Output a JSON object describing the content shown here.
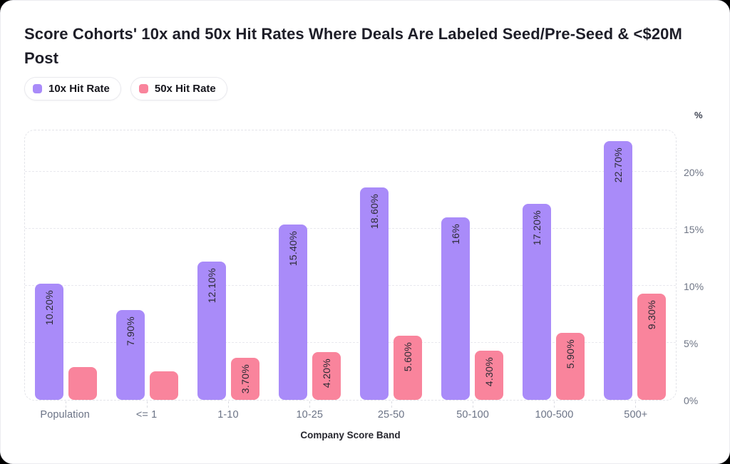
{
  "header": {
    "title_lines": [
      "Score Cohorts' 10x and 50x Hit Rates Where Deals Are Labeled Seed/Pre-Seed & <$20M",
      "Post"
    ]
  },
  "chart_data": {
    "type": "bar",
    "title": "Score Cohorts' 10x and 50x Hit Rates Where Deals Are Labeled Seed/Pre-Seed & <$20M Post",
    "categories": [
      "Population",
      "<= 1",
      "1-10",
      "10-25",
      "25-50",
      "50-100",
      "100-500",
      "500+"
    ],
    "series": [
      {
        "name": "10x Hit Rate",
        "color": "#a98bf9",
        "values": [
          10.2,
          7.9,
          12.1,
          15.4,
          18.6,
          16,
          17.2,
          22.7
        ],
        "bar_labels": [
          "10.20%",
          "7.90%",
          "12.10%",
          "15.40%",
          "18.60%",
          "16%",
          "17.20%",
          "22.70%"
        ]
      },
      {
        "name": "50x Hit Rate",
        "color": "#f9849c",
        "values": [
          2.9,
          2.5,
          3.7,
          4.2,
          5.6,
          4.3,
          5.9,
          9.3
        ],
        "bar_labels": [
          "",
          "",
          "3.70%",
          "4.20%",
          "5.60%",
          "4.30%",
          "5.90%",
          "9.30%"
        ]
      }
    ],
    "xlabel": "Company Score Band",
    "ylabel": "%",
    "yticks": [
      0,
      5,
      10,
      15,
      20
    ],
    "ytick_labels": [
      "0%",
      "5%",
      "10%",
      "15%",
      "20%"
    ],
    "ylim": [
      0,
      23.75
    ],
    "grid": "horizontal-dashed",
    "legend_position": "top-left"
  }
}
